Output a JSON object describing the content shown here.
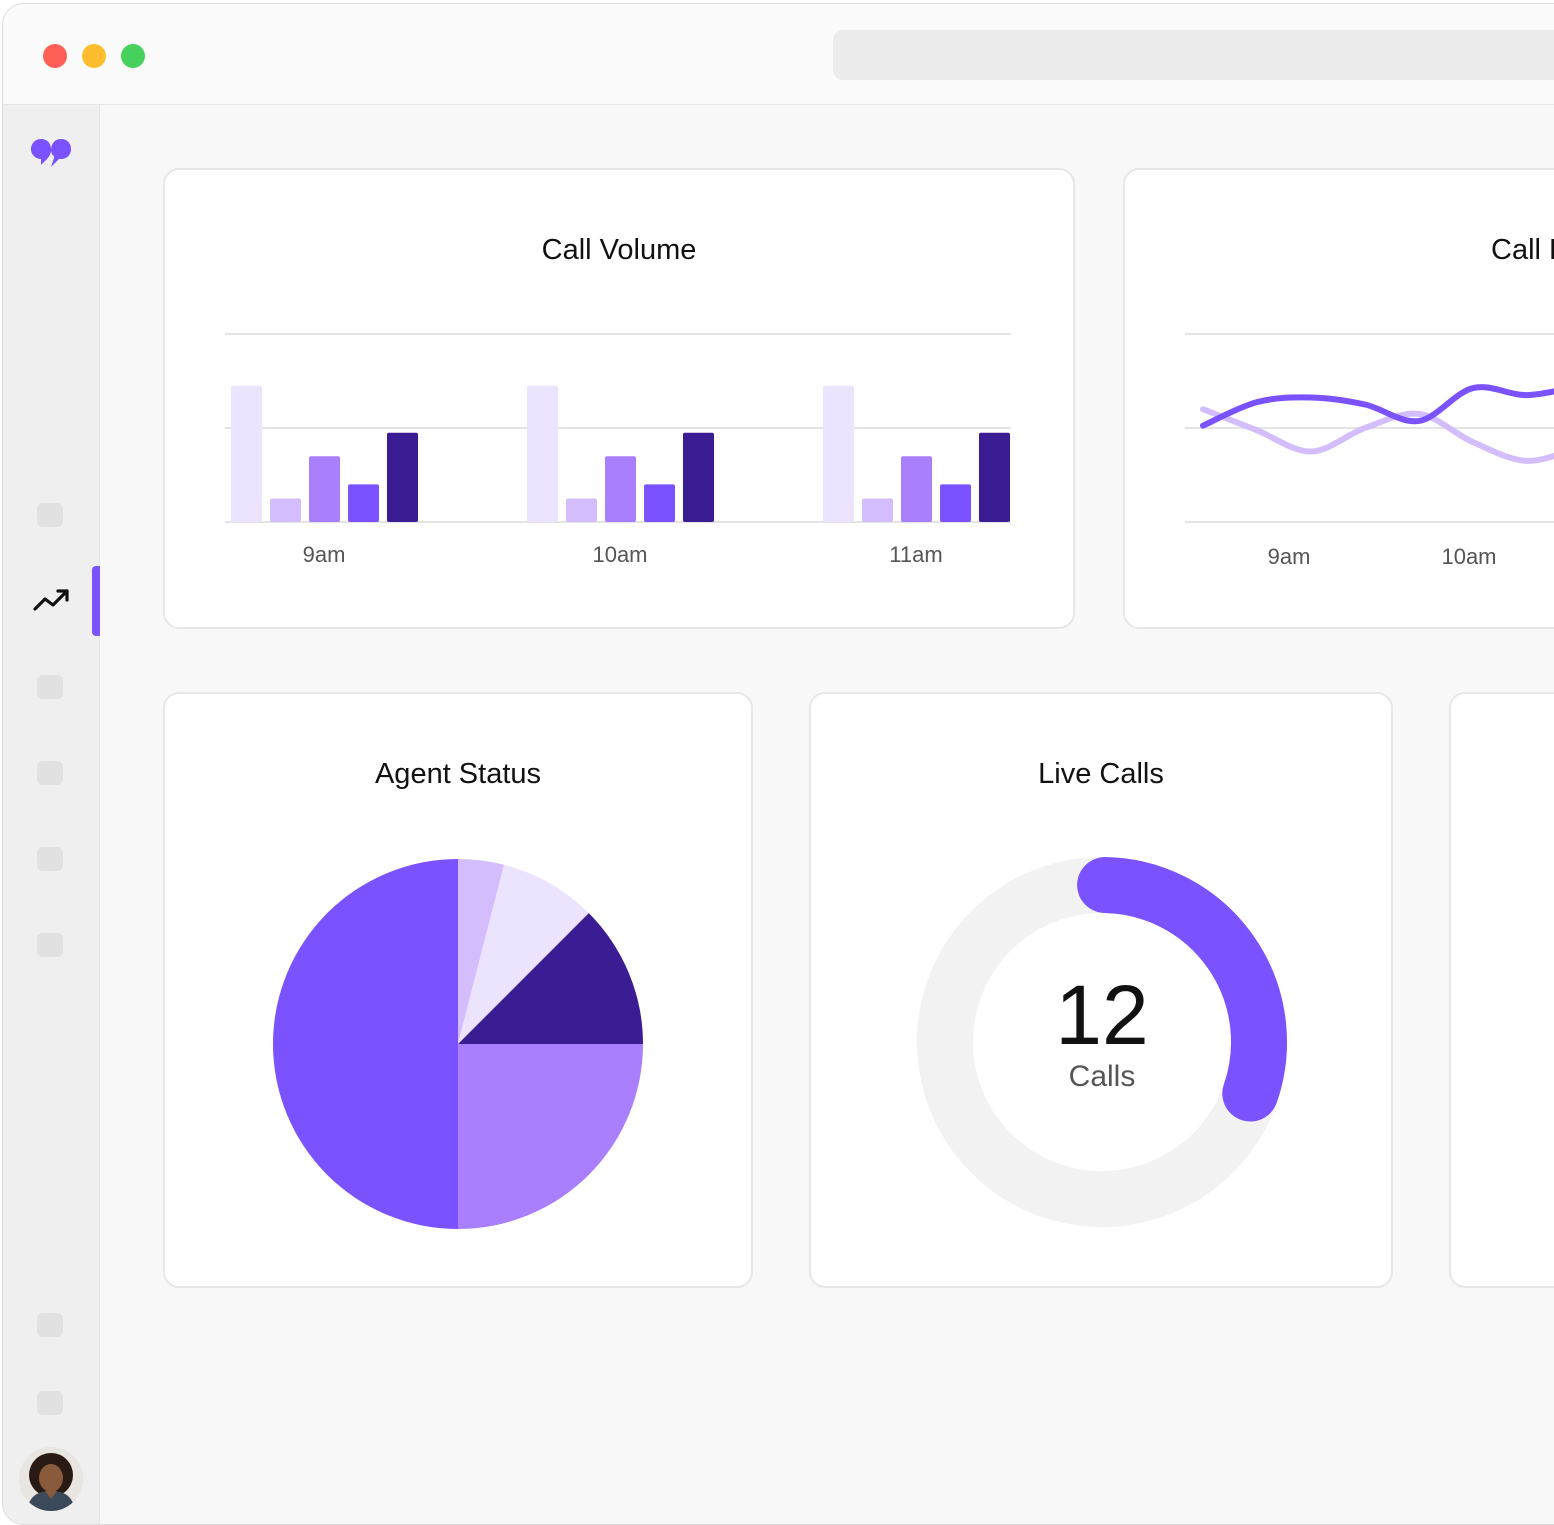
{
  "window": {
    "traffic_lights": [
      "#fe5f57",
      "#fdbd2e",
      "#28c840"
    ]
  },
  "sidebar": {
    "brand_icon": "dialpad-logo-icon",
    "active_item": "analytics-trend-icon",
    "accent_color": "#7b52ff",
    "user_avatar": "user-avatar"
  },
  "cards": {
    "call_volume": {
      "title": "Call Volume",
      "chart_data": {
        "type": "bar",
        "categories": [
          "9am",
          "10am",
          "11am"
        ],
        "series": [
          {
            "color": "#ece3fe",
            "values": [
              5.8,
              5.8,
              5.8
            ]
          },
          {
            "color": "#d3bdfd",
            "values": [
              1.0,
              1.0,
              1.0
            ]
          },
          {
            "color": "#a97ffd",
            "values": [
              2.8,
              2.8,
              2.8
            ]
          },
          {
            "color": "#7b52ff",
            "values": [
              1.6,
              1.6,
              1.6
            ]
          },
          {
            "color": "#3a1c93",
            "values": [
              3.8,
              3.8,
              3.8
            ]
          }
        ],
        "ylim": [
          0,
          8
        ],
        "grid": true
      }
    },
    "call_duration": {
      "title": "Call D",
      "chart_data": {
        "type": "line",
        "x_labels": [
          "9am",
          "10am"
        ],
        "series": [
          {
            "color": "#7b52ff",
            "values": [
              4.1,
              5.1,
              5.3,
              5.0,
              4.3,
              5.7,
              5.4,
              5.8
            ]
          },
          {
            "color": "#d3bdfd",
            "values": [
              4.8,
              3.9,
              3.0,
              4.0,
              4.6,
              3.4,
              2.6,
              3.2
            ]
          }
        ],
        "ylim": [
          0,
          8
        ],
        "grid": true
      }
    },
    "agent_status": {
      "title": "Agent Status",
      "chart_data": {
        "type": "pie",
        "slices": [
          {
            "value": 4,
            "color": "#d3bdfd"
          },
          {
            "value": 8.5,
            "color": "#ece3fe"
          },
          {
            "value": 12.5,
            "color": "#3a1c93"
          },
          {
            "value": 25,
            "color": "#a97ffd"
          },
          {
            "value": 50,
            "color": "#7b52ff"
          }
        ]
      }
    },
    "live_calls": {
      "title": "Live Calls",
      "count": "12",
      "unit": "Calls",
      "progress_fraction": 0.3,
      "track_color": "#f2f2f2",
      "fill_color": "#7b52ff"
    }
  }
}
